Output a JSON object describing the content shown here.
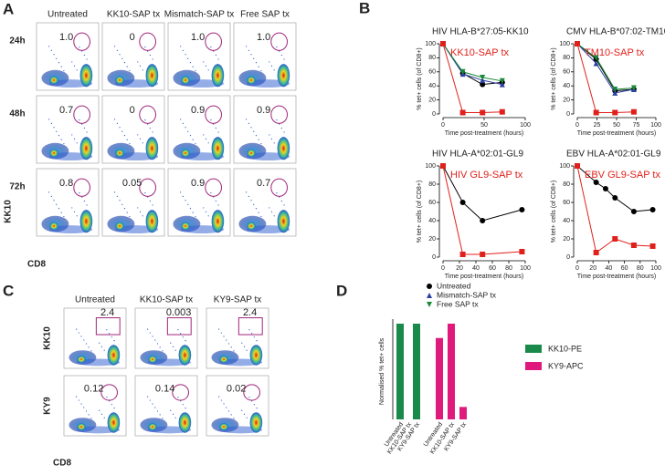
{
  "panel_a": {
    "label": "A",
    "columns": [
      "Untreated",
      "KK10-SAP tx",
      "Mismatch-SAP tx",
      "Free SAP tx"
    ],
    "rows": [
      "24h",
      "48h",
      "72h"
    ],
    "gates": [
      [
        "1.0",
        "0",
        "1.0",
        "1.0"
      ],
      [
        "0.7",
        "0",
        "0.9",
        "0.9"
      ],
      [
        "0.8",
        "0.05",
        "0.9",
        "0.7"
      ]
    ],
    "y_axis_label": "KK10",
    "x_axis_label": "CD8"
  },
  "panel_b": {
    "label": "B",
    "chart_data": [
      {
        "type": "line",
        "title": "HIV HLA-B*27:05-KK10",
        "ylabel": "% tet+ cells (of CD8+)",
        "xlabel": "Time post-treatment (hours)",
        "xlim": [
          0,
          100
        ],
        "xticks": [
          0,
          50,
          100
        ],
        "ylim": [
          0,
          100
        ],
        "yticks": [
          0,
          20,
          40,
          60,
          80,
          100
        ],
        "series": [
          {
            "color": "#000000",
            "marker": "circle",
            "x": [
              0,
              24,
              48,
              72
            ],
            "values": [
              100,
              58,
              42,
              45
            ]
          },
          {
            "color": "#2b3f9e",
            "marker": "triangle",
            "x": [
              0,
              24,
              48,
              72
            ],
            "values": [
              100,
              57,
              48,
              42
            ]
          },
          {
            "color": "#1a8a3a",
            "marker": "triangle-down",
            "x": [
              0,
              24,
              48,
              72
            ],
            "values": [
              100,
              60,
              52,
              47
            ]
          },
          {
            "name": "KK10-SAP tx",
            "color": "#e0201b",
            "marker": "square",
            "x": [
              0,
              24,
              48,
              72
            ],
            "values": [
              100,
              2,
              2,
              3
            ]
          }
        ]
      },
      {
        "type": "line",
        "title": "CMV HLA-B*07:02-TM10",
        "ylabel": "% tet+ cells (of CD8+)",
        "xlabel": "Time post-treatment (hours)",
        "xlim": [
          0,
          100
        ],
        "xticks": [
          0,
          25,
          50,
          75,
          100
        ],
        "ylim": [
          0,
          100
        ],
        "yticks": [
          0,
          20,
          40,
          60,
          80,
          100
        ],
        "series": [
          {
            "color": "#000000",
            "marker": "circle",
            "x": [
              0,
              24,
              48,
              72
            ],
            "values": [
              100,
              78,
              33,
              35
            ]
          },
          {
            "color": "#2b3f9e",
            "marker": "triangle",
            "x": [
              0,
              24,
              48,
              72
            ],
            "values": [
              100,
              72,
              30,
              35
            ]
          },
          {
            "color": "#1a8a3a",
            "marker": "triangle-down",
            "x": [
              0,
              24,
              48,
              72
            ],
            "values": [
              100,
              80,
              35,
              37
            ]
          },
          {
            "name": "TM10-SAP tx",
            "color": "#e0201b",
            "marker": "square",
            "x": [
              0,
              24,
              48,
              72
            ],
            "values": [
              100,
              2,
              2,
              3
            ]
          }
        ]
      },
      {
        "type": "line",
        "title": "HIV HLA-A*02:01-GL9",
        "ylabel": "% tet+ cells (of CD8+)",
        "xlabel": "Time post-treatment (hours)",
        "xlim": [
          0,
          100
        ],
        "xticks": [
          0,
          20,
          40,
          60,
          80,
          100
        ],
        "ylim": [
          0,
          100
        ],
        "yticks": [
          0,
          20,
          40,
          60,
          80,
          100
        ],
        "series": [
          {
            "color": "#000000",
            "marker": "circle",
            "x": [
              0,
              24,
              48,
              96
            ],
            "values": [
              100,
              60,
              40,
              52
            ]
          },
          {
            "name": "HIV GL9-SAP tx",
            "color": "#e0201b",
            "marker": "square",
            "x": [
              0,
              24,
              48,
              96
            ],
            "values": [
              100,
              3,
              3,
              6
            ]
          }
        ]
      },
      {
        "type": "line",
        "title": "EBV HLA-A*02:01-GL9",
        "ylabel": "% tet+ cells (of CD8+)",
        "xlabel": "Time post-treatment (hours)",
        "xlim": [
          0,
          100
        ],
        "xticks": [
          0,
          20,
          40,
          60,
          80,
          100
        ],
        "ylim": [
          0,
          100
        ],
        "yticks": [
          0,
          20,
          40,
          60,
          80,
          100
        ],
        "series": [
          {
            "color": "#000000",
            "marker": "circle",
            "x": [
              0,
              24,
              36,
              48,
              72,
              96
            ],
            "values": [
              100,
              82,
              75,
              65,
              50,
              52
            ]
          },
          {
            "name": "EBV GL9-SAP tx",
            "color": "#e0201b",
            "marker": "square",
            "x": [
              0,
              24,
              48,
              72,
              96
            ],
            "values": [
              100,
              5,
              20,
              13,
              12
            ]
          }
        ]
      }
    ],
    "legend": [
      {
        "name": "Untreated",
        "color": "#000000",
        "marker": "circle"
      },
      {
        "name": "Mismatch-SAP tx",
        "color": "#2b3f9e",
        "marker": "triangle"
      },
      {
        "name": "Free SAP tx",
        "color": "#1a8a3a",
        "marker": "triangle-down"
      }
    ]
  },
  "panel_c": {
    "label": "C",
    "columns": [
      "Untreated",
      "KK10-SAP tx",
      "KY9-SAP tx"
    ],
    "rows": [
      "KK10",
      "KY9"
    ],
    "gates": [
      [
        "2.4",
        "0.003",
        "2.4"
      ],
      [
        "0.12",
        "0.14",
        "0.02"
      ]
    ],
    "x_axis_label": "CD8"
  },
  "panel_d": {
    "label": "D",
    "chart_data": {
      "type": "bar",
      "ylabel": "Normalised % tet+ cells",
      "categories": [
        "Untreated",
        "KK10-SAP tx",
        "KY9-SAP tx",
        "Untreated",
        "KK10-SAP tx",
        "KY9-SAP tx"
      ],
      "ylim": [
        0,
        100
      ],
      "series": [
        {
          "name": "KK10-PE",
          "color": "#1a8a4a",
          "values": [
            100,
            0,
            100,
            null,
            null,
            null
          ]
        },
        {
          "name": "KY9-APC",
          "color": "#e0197d",
          "values": [
            null,
            null,
            null,
            85,
            100,
            13
          ]
        }
      ]
    }
  }
}
